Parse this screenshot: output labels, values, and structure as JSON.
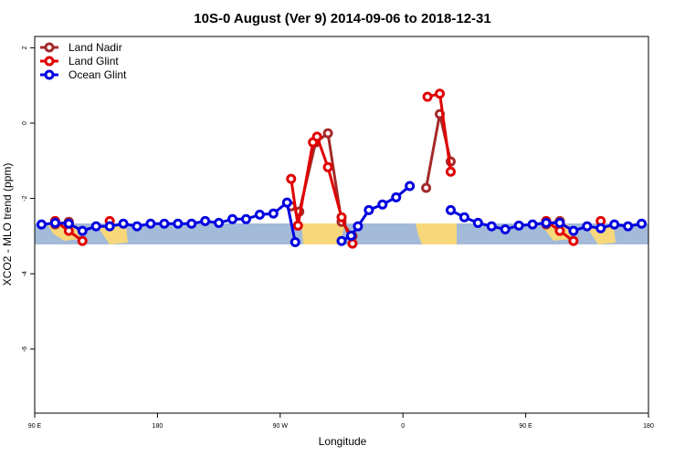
{
  "chart_data": {
    "type": "line",
    "title": "10S-0 August (Ver 9)   2014-09-06 to 2018-12-31",
    "xlabel": "Longitude",
    "ylabel": "XCO2 - MLO trend (ppm)",
    "xlim": [
      90,
      540
    ],
    "ylim": [
      -7.7,
      2.3
    ],
    "xticks": [
      {
        "value": 90,
        "label": "90 E"
      },
      180,
      {
        "value": 270,
        "label": "90 W"
      },
      {
        "value": 360,
        "label": "0"
      },
      {
        "value": 450,
        "label": "90 E"
      },
      {
        "value": 540,
        "label": "180"
      }
    ],
    "yticks": [
      2,
      0,
      -2,
      -4,
      -6
    ],
    "legend": "top-left",
    "series": [
      {
        "name": "Land Nadir",
        "color": "#a52a2a",
        "x": [
          105,
          115,
          null,
          278,
          284,
          296,
          305,
          315,
          323,
          null,
          377,
          387,
          395,
          null,
          465,
          475
        ],
        "values": [
          -2.69,
          -2.62,
          null,
          -2.21,
          -2.35,
          -0.51,
          -0.27,
          -2.62,
          -3.0,
          null,
          -1.72,
          0.24,
          -1.02,
          null,
          -2.69,
          -2.6
        ]
      },
      {
        "name": "Land Glint",
        "color": "#e00000",
        "x": [
          105,
          115,
          125,
          null,
          145,
          null,
          278,
          283,
          294,
          297,
          305,
          315,
          323,
          null,
          378,
          387,
          395,
          null,
          465,
          475,
          485,
          null,
          505
        ],
        "values": [
          -2.6,
          -2.86,
          -3.13,
          null,
          -2.6,
          null,
          -1.48,
          -2.72,
          -0.51,
          -0.36,
          -1.17,
          -2.5,
          -3.2,
          null,
          0.7,
          0.78,
          -1.29,
          null,
          -2.6,
          -2.86,
          -3.13,
          null,
          -2.6
        ]
      },
      {
        "name": "Ocean Glint",
        "color": "#0000e0",
        "x": [
          95,
          105,
          115,
          125,
          135,
          145,
          155,
          165,
          175,
          185,
          195,
          205,
          215,
          225,
          235,
          245,
          255,
          265,
          275,
          281,
          null,
          315,
          322,
          327,
          335,
          345,
          355,
          365,
          null,
          395,
          405,
          415,
          425,
          435,
          445,
          455,
          465,
          475,
          485,
          495,
          505,
          515,
          525,
          535
        ],
        "values": [
          -2.69,
          -2.65,
          -2.67,
          -2.86,
          -2.74,
          -2.74,
          -2.67,
          -2.74,
          -2.67,
          -2.67,
          -2.67,
          -2.67,
          -2.6,
          -2.65,
          -2.55,
          -2.55,
          -2.43,
          -2.4,
          -2.11,
          -3.16,
          null,
          -3.13,
          -2.99,
          -2.74,
          -2.31,
          -2.16,
          -1.97,
          -1.67,
          null,
          -2.31,
          -2.5,
          -2.65,
          -2.74,
          -2.82,
          -2.72,
          -2.69,
          -2.65,
          -2.65,
          -2.86,
          -2.74,
          -2.79,
          -2.69,
          -2.74,
          -2.67
        ]
      }
    ]
  }
}
